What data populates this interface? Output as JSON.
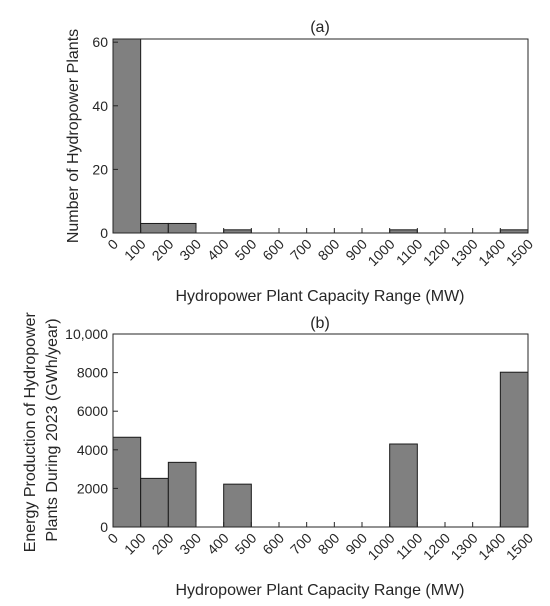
{
  "chart_data": [
    {
      "type": "bar",
      "title": "(a)",
      "xlabel": "Hydropower Plant Capacity Range (MW)",
      "ylabel": "Number of Hydropower Plants",
      "bin_edges": [
        0,
        100,
        200,
        300,
        400,
        500,
        600,
        700,
        800,
        900,
        1000,
        1100,
        1200,
        1300,
        1400,
        1500
      ],
      "xtick_labels": [
        "0",
        "100",
        "200",
        "300",
        "400",
        "500",
        "600",
        "700",
        "800",
        "900",
        "1000",
        "1100",
        "1200",
        "1300",
        "1400",
        "1500"
      ],
      "values": [
        61,
        3,
        3,
        0,
        1,
        0,
        0,
        0,
        0,
        0,
        1,
        0,
        0,
        0,
        1
      ],
      "ylim": [
        0,
        61
      ],
      "yticks": [
        0,
        20,
        40,
        60
      ],
      "ytick_labels": [
        "0",
        "20",
        "40",
        "60"
      ],
      "bar_color": "#808080",
      "grid": false
    },
    {
      "type": "bar",
      "title": "(b)",
      "xlabel": "Hydropower Plant Capacity Range (MW)",
      "ylabel_lines": [
        "Energy Production of Hydropower",
        "Plants During 2023 (GWh/year)"
      ],
      "bin_edges": [
        0,
        100,
        200,
        300,
        400,
        500,
        600,
        700,
        800,
        900,
        1000,
        1100,
        1200,
        1300,
        1400,
        1500
      ],
      "xtick_labels": [
        "0",
        "100",
        "200",
        "300",
        "400",
        "500",
        "600",
        "700",
        "800",
        "900",
        "1000",
        "1100",
        "1200",
        "1300",
        "1400",
        "1500"
      ],
      "values": [
        4650,
        2520,
        3350,
        0,
        2220,
        0,
        0,
        0,
        0,
        0,
        4300,
        0,
        0,
        0,
        8020
      ],
      "ylim": [
        0,
        10000
      ],
      "yticks": [
        0,
        2000,
        4000,
        6000,
        8000,
        10000
      ],
      "ytick_labels": [
        "0",
        "2000",
        "4000",
        "6000",
        "8000",
        "10,000"
      ],
      "bar_color": "#808080",
      "grid": false
    }
  ]
}
